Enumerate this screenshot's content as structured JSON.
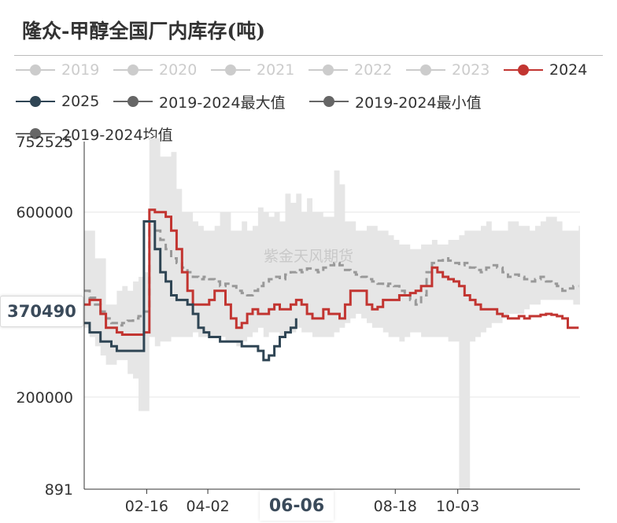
{
  "title": "隆众-甲醇全国厂内库存(吨)",
  "watermark": "紫金天风期货",
  "legend": [
    {
      "name": "2019",
      "color": "#cccccc",
      "active": false
    },
    {
      "name": "2020",
      "color": "#cccccc",
      "active": false
    },
    {
      "name": "2021",
      "color": "#cccccc",
      "active": false
    },
    {
      "name": "2022",
      "color": "#cccccc",
      "active": false
    },
    {
      "name": "2023",
      "color": "#cccccc",
      "active": false
    },
    {
      "name": "2024",
      "color": "#c23531",
      "active": true
    },
    {
      "name": "2025",
      "color": "#2f4554",
      "active": true
    },
    {
      "name": "2019-2024最大值",
      "color": "#666666",
      "active": true
    },
    {
      "name": "2019-2024最小值",
      "color": "#666666",
      "active": true
    },
    {
      "name": "2019-2024均值",
      "color": "#666666",
      "active": true
    }
  ],
  "axis_pointer": {
    "y_value": "370490",
    "x_value": "06-06"
  },
  "chart_data": {
    "type": "line",
    "y_ticks": [
      "752525",
      "600000",
      "200000",
      "891"
    ],
    "x_ticks": [
      {
        "label": "02-16",
        "day": 46
      },
      {
        "label": "04-02",
        "day": 91
      },
      {
        "label": "08-18",
        "day": 229
      },
      {
        "label": "10-03",
        "day": 275
      }
    ],
    "x_range_days": [
      0,
      365
    ],
    "ylim": [
      891,
      752525
    ],
    "series": [
      {
        "name": "2019-2024最大值",
        "color": "#e6e6e6",
        "x": [
          0,
          4,
          8,
          12,
          16,
          20,
          24,
          28,
          32,
          36,
          40,
          44,
          48,
          52,
          56,
          60,
          64,
          68,
          72,
          76,
          80,
          84,
          88,
          92,
          96,
          100,
          104,
          108,
          112,
          116,
          120,
          124,
          128,
          132,
          136,
          140,
          144,
          148,
          152,
          156,
          160,
          164,
          168,
          172,
          176,
          180,
          184,
          188,
          192,
          196,
          200,
          204,
          208,
          212,
          216,
          220,
          224,
          228,
          232,
          236,
          240,
          244,
          248,
          252,
          256,
          260,
          264,
          268,
          272,
          276,
          280,
          284,
          288,
          292,
          296,
          300,
          304,
          308,
          312,
          316,
          320,
          324,
          328,
          332,
          336,
          340,
          344,
          348,
          352,
          356,
          360,
          364
        ],
        "values": [
          560000,
          560000,
          500000,
          500000,
          400000,
          400000,
          430000,
          440000,
          430000,
          450000,
          460000,
          470000,
          760000,
          760000,
          720000,
          720000,
          730000,
          650000,
          600000,
          600000,
          580000,
          570000,
          560000,
          560000,
          570000,
          600000,
          600000,
          560000,
          560000,
          580000,
          560000,
          570000,
          610000,
          600000,
          590000,
          600000,
          580000,
          640000,
          620000,
          640000,
          600000,
          630000,
          600000,
          600000,
          590000,
          590000,
          690000,
          660000,
          580000,
          580000,
          560000,
          560000,
          570000,
          570000,
          560000,
          560000,
          550000,
          540000,
          530000,
          530000,
          520000,
          520000,
          530000,
          530000,
          540000,
          530000,
          530000,
          540000,
          540000,
          550000,
          560000,
          560000,
          560000,
          570000,
          580000,
          560000,
          560000,
          560000,
          580000,
          580000,
          570000,
          570000,
          560000,
          570000,
          580000,
          590000,
          590000,
          580000,
          560000,
          560000,
          560000,
          570000
        ]
      },
      {
        "name": "2019-2024最小值",
        "color": "#e6e6e6",
        "x": [
          0,
          4,
          8,
          12,
          16,
          20,
          24,
          28,
          32,
          36,
          40,
          44,
          48,
          52,
          56,
          60,
          64,
          68,
          72,
          76,
          80,
          84,
          88,
          92,
          96,
          100,
          104,
          108,
          112,
          116,
          120,
          124,
          128,
          132,
          136,
          140,
          144,
          148,
          152,
          156,
          160,
          164,
          168,
          172,
          176,
          180,
          184,
          188,
          192,
          196,
          200,
          204,
          208,
          212,
          216,
          220,
          224,
          228,
          232,
          236,
          240,
          244,
          248,
          252,
          256,
          260,
          264,
          268,
          272,
          276,
          280,
          284,
          288,
          292,
          296,
          300,
          304,
          308,
          312,
          316,
          320,
          324,
          328,
          332,
          336,
          340,
          344,
          348,
          352,
          356,
          360,
          364
        ],
        "values": [
          350000,
          330000,
          310000,
          290000,
          270000,
          270000,
          280000,
          280000,
          250000,
          240000,
          170000,
          170000,
          330000,
          310000,
          320000,
          320000,
          330000,
          330000,
          330000,
          330000,
          340000,
          330000,
          330000,
          330000,
          330000,
          330000,
          320000,
          320000,
          310000,
          320000,
          330000,
          340000,
          350000,
          330000,
          340000,
          340000,
          330000,
          340000,
          340000,
          350000,
          340000,
          340000,
          330000,
          330000,
          330000,
          330000,
          340000,
          350000,
          360000,
          370000,
          380000,
          370000,
          360000,
          350000,
          350000,
          340000,
          330000,
          330000,
          320000,
          330000,
          340000,
          340000,
          330000,
          330000,
          330000,
          330000,
          330000,
          320000,
          320000,
          0,
          0,
          320000,
          330000,
          340000,
          350000,
          360000,
          360000,
          370000,
          380000,
          380000,
          380000,
          390000,
          400000,
          400000,
          410000,
          410000,
          410000,
          410000,
          410000,
          410000,
          400000,
          400000
        ]
      },
      {
        "name": "2019-2024均值",
        "color": "#999999",
        "x": [
          0,
          4,
          8,
          12,
          16,
          20,
          24,
          28,
          32,
          36,
          40,
          44,
          48,
          52,
          56,
          60,
          64,
          68,
          72,
          76,
          80,
          84,
          88,
          92,
          96,
          100,
          104,
          108,
          112,
          116,
          120,
          124,
          128,
          132,
          136,
          140,
          144,
          148,
          152,
          156,
          160,
          164,
          168,
          172,
          176,
          180,
          184,
          188,
          192,
          196,
          200,
          204,
          208,
          212,
          216,
          220,
          224,
          228,
          232,
          236,
          240,
          244,
          248,
          252,
          256,
          260,
          264,
          268,
          272,
          276,
          280,
          284,
          288,
          292,
          296,
          300,
          304,
          308,
          312,
          316,
          320,
          324,
          328,
          332,
          336,
          340,
          344,
          348,
          352,
          356,
          360,
          364
        ],
        "values": [
          430000,
          415000,
          400000,
          385000,
          370000,
          360000,
          355000,
          360000,
          365000,
          370000,
          375000,
          385000,
          560000,
          560000,
          540000,
          520000,
          500000,
          490000,
          480000,
          470000,
          460000,
          455000,
          460000,
          455000,
          450000,
          440000,
          445000,
          440000,
          430000,
          425000,
          420000,
          430000,
          440000,
          450000,
          455000,
          460000,
          455000,
          465000,
          470000,
          475000,
          470000,
          478000,
          475000,
          470000,
          480000,
          485000,
          490000,
          485000,
          475000,
          470000,
          465000,
          460000,
          455000,
          450000,
          445000,
          440000,
          445000,
          440000,
          430000,
          420000,
          410000,
          400000,
          420000,
          470000,
          490000,
          495000,
          500000,
          495000,
          490000,
          485000,
          490000,
          480000,
          475000,
          470000,
          480000,
          485000,
          480000,
          470000,
          460000,
          465000,
          460000,
          455000,
          450000,
          455000,
          460000,
          450000,
          445000,
          440000,
          430000,
          435000,
          440000,
          440000
        ]
      },
      {
        "name": "2024",
        "color": "#c23531",
        "x": [
          0,
          4,
          8,
          12,
          16,
          20,
          24,
          28,
          32,
          36,
          40,
          44,
          48,
          52,
          56,
          60,
          64,
          68,
          72,
          76,
          80,
          84,
          88,
          92,
          96,
          100,
          104,
          108,
          112,
          116,
          120,
          124,
          128,
          132,
          136,
          140,
          144,
          148,
          152,
          156,
          160,
          164,
          168,
          172,
          176,
          180,
          184,
          188,
          192,
          196,
          200,
          204,
          208,
          212,
          216,
          220,
          224,
          228,
          232,
          236,
          240,
          244,
          248,
          252,
          256,
          260,
          264,
          268,
          272,
          276,
          280,
          284,
          288,
          292,
          296,
          300,
          304,
          308,
          312,
          316,
          320,
          324,
          328,
          332,
          336,
          340,
          344,
          348,
          352,
          356,
          360,
          364
        ],
        "values": [
          400000,
          410000,
          410000,
          380000,
          350000,
          350000,
          340000,
          335000,
          335000,
          335000,
          335000,
          340000,
          605000,
          600000,
          600000,
          590000,
          560000,
          520000,
          470000,
          430000,
          400000,
          400000,
          400000,
          410000,
          430000,
          430000,
          400000,
          370000,
          350000,
          360000,
          380000,
          390000,
          380000,
          380000,
          390000,
          400000,
          390000,
          390000,
          400000,
          410000,
          400000,
          380000,
          370000,
          370000,
          390000,
          380000,
          380000,
          370000,
          400000,
          430000,
          430000,
          430000,
          400000,
          390000,
          395000,
          410000,
          410000,
          410000,
          420000,
          420000,
          425000,
          430000,
          440000,
          440000,
          480000,
          470000,
          460000,
          455000,
          450000,
          440000,
          420000,
          410000,
          400000,
          390000,
          390000,
          390000,
          380000,
          375000,
          370000,
          370000,
          375000,
          370000,
          375000,
          375000,
          378000,
          380000,
          378000,
          375000,
          370000,
          350000,
          350000,
          350000
        ]
      },
      {
        "name": "2025",
        "color": "#2f4554",
        "x": [
          0,
          4,
          8,
          12,
          16,
          20,
          24,
          28,
          32,
          36,
          40,
          44,
          48,
          52,
          56,
          60,
          64,
          68,
          72,
          76,
          80,
          84,
          88,
          92,
          96,
          100,
          104,
          108,
          112,
          116,
          120,
          124,
          128,
          132,
          136,
          140,
          144,
          148,
          152,
          156
        ],
        "values": [
          360000,
          340000,
          340000,
          320000,
          320000,
          310000,
          300000,
          300000,
          300000,
          300000,
          300000,
          580000,
          580000,
          520000,
          470000,
          450000,
          420000,
          410000,
          410000,
          400000,
          380000,
          350000,
          340000,
          330000,
          330000,
          320000,
          320000,
          320000,
          320000,
          310000,
          310000,
          310000,
          300000,
          280000,
          290000,
          310000,
          330000,
          340000,
          350000,
          370490
        ]
      }
    ]
  }
}
